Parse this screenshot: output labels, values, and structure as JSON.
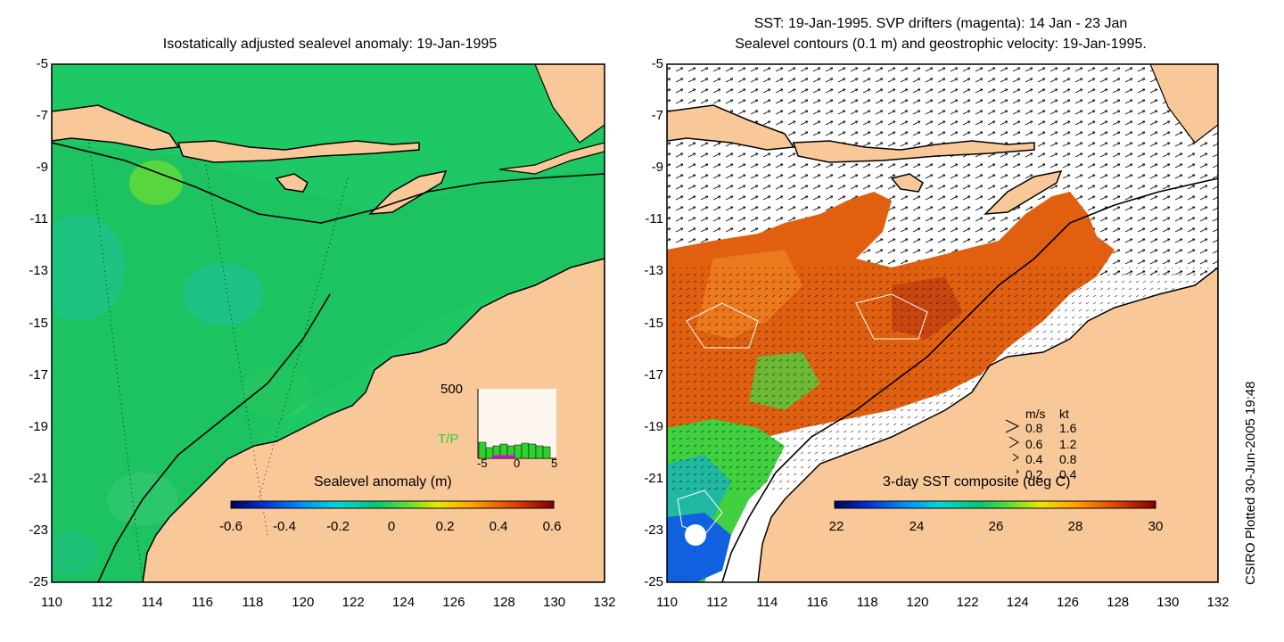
{
  "left_panel": {
    "title": "Isostatically adjusted sealevel anomaly: 19-Jan-1995",
    "colorbar": {
      "label": "Sealevel anomaly (m)",
      "ticks": [
        "-0.6",
        "-0.4",
        "-0.2",
        "0",
        "0.2",
        "0.4",
        "0.6"
      ],
      "colors": [
        "#00005a",
        "#0030d0",
        "#0090ff",
        "#00d8d8",
        "#00c878",
        "#30d830",
        "#a0e820",
        "#f0e000",
        "#ffa000",
        "#f05000",
        "#c01000",
        "#800000"
      ]
    },
    "inset": {
      "ymax_label": "500",
      "series_label": "T/P",
      "x_ticks": [
        "-5",
        "0",
        "5"
      ],
      "series_color": "#30d030",
      "marker_color": "#e000e0"
    }
  },
  "right_panel": {
    "title_line1": "SST: 19-Jan-1995. SVP drifters (magenta): 14 Jan - 23 Jan",
    "title_line2": "Sealevel contours (0.1 m) and geostrophic velocity: 19-Jan-1995.",
    "colorbar": {
      "label": "3-day SST composite (deg C)",
      "ticks": [
        "22",
        "24",
        "26",
        "28",
        "30"
      ],
      "colors": [
        "#00005a",
        "#0030d0",
        "#0090ff",
        "#00d8d8",
        "#00c878",
        "#30d830",
        "#a0e820",
        "#f0e000",
        "#ffa000",
        "#f05000",
        "#c01000",
        "#800000"
      ]
    },
    "velocity_legend": {
      "header_ms": "m/s",
      "header_kt": "kt",
      "rows": [
        {
          "ms": "0.8",
          "kt": "1.6"
        },
        {
          "ms": "0.6",
          "kt": "1.2"
        },
        {
          "ms": "0.4",
          "kt": "0.8"
        },
        {
          "ms": "0.2",
          "kt": "0.4"
        }
      ]
    }
  },
  "axes": {
    "y_ticks": [
      "-5",
      "-7",
      "-9",
      "-11",
      "-13",
      "-15",
      "-17",
      "-19",
      "-21",
      "-23",
      "-25"
    ],
    "x_ticks": [
      "110",
      "112",
      "114",
      "116",
      "118",
      "120",
      "122",
      "124",
      "126",
      "128",
      "130",
      "132"
    ]
  },
  "credit": "CSIRO Plotted 30-Jun-2005 19:48",
  "colors": {
    "land": "#f8c898",
    "ocean_left": "#1ec864",
    "shelf_left": "#10b850",
    "ocean_right": "#ffffff",
    "sst_warm": "#e06010"
  }
}
